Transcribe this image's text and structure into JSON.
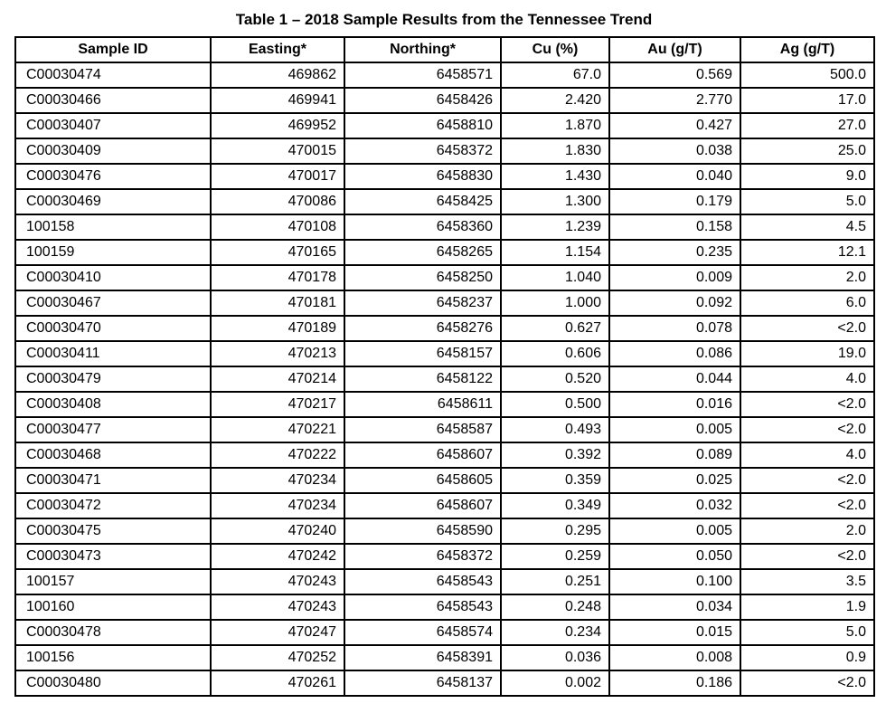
{
  "title": "Table 1 – 2018 Sample Results from the Tennessee Trend",
  "columns": [
    "Sample ID",
    "Easting*",
    "Northing*",
    "Cu (%)",
    "Au (g/T)",
    "Ag (g/T)"
  ],
  "rows": [
    [
      "C00030474",
      "469862",
      "6458571",
      "67.0",
      "0.569",
      "500.0"
    ],
    [
      "C00030466",
      "469941",
      "6458426",
      "2.420",
      "2.770",
      "17.0"
    ],
    [
      "C00030407",
      "469952",
      "6458810",
      "1.870",
      "0.427",
      "27.0"
    ],
    [
      "C00030409",
      "470015",
      "6458372",
      "1.830",
      "0.038",
      "25.0"
    ],
    [
      "C00030476",
      "470017",
      "6458830",
      "1.430",
      "0.040",
      "9.0"
    ],
    [
      "C00030469",
      "470086",
      "6458425",
      "1.300",
      "0.179",
      "5.0"
    ],
    [
      "100158",
      "470108",
      "6458360",
      "1.239",
      "0.158",
      "4.5"
    ],
    [
      "100159",
      "470165",
      "6458265",
      "1.154",
      "0.235",
      "12.1"
    ],
    [
      "C00030410",
      "470178",
      "6458250",
      "1.040",
      "0.009",
      "2.0"
    ],
    [
      "C00030467",
      "470181",
      "6458237",
      "1.000",
      "0.092",
      "6.0"
    ],
    [
      "C00030470",
      "470189",
      "6458276",
      "0.627",
      "0.078",
      "<2.0"
    ],
    [
      "C00030411",
      "470213",
      "6458157",
      "0.606",
      "0.086",
      "19.0"
    ],
    [
      "C00030479",
      "470214",
      "6458122",
      "0.520",
      "0.044",
      "4.0"
    ],
    [
      "C00030408",
      "470217",
      "6458611",
      "0.500",
      "0.016",
      "<2.0"
    ],
    [
      "C00030477",
      "470221",
      "6458587",
      "0.493",
      "0.005",
      "<2.0"
    ],
    [
      "C00030468",
      "470222",
      "6458607",
      "0.392",
      "0.089",
      "4.0"
    ],
    [
      "C00030471",
      "470234",
      "6458605",
      "0.359",
      "0.025",
      "<2.0"
    ],
    [
      "C00030472",
      "470234",
      "6458607",
      "0.349",
      "0.032",
      "<2.0"
    ],
    [
      "C00030475",
      "470240",
      "6458590",
      "0.295",
      "0.005",
      "2.0"
    ],
    [
      "C00030473",
      "470242",
      "6458372",
      "0.259",
      "0.050",
      "<2.0"
    ],
    [
      "100157",
      "470243",
      "6458543",
      "0.251",
      "0.100",
      "3.5"
    ],
    [
      "100160",
      "470243",
      "6458543",
      "0.248",
      "0.034",
      "1.9"
    ],
    [
      "C00030478",
      "470247",
      "6458574",
      "0.234",
      "0.015",
      "5.0"
    ],
    [
      "100156",
      "470252",
      "6458391",
      "0.036",
      "0.008",
      "0.9"
    ],
    [
      "C00030480",
      "470261",
      "6458137",
      "0.002",
      "0.186",
      "<2.0"
    ]
  ],
  "colors": {
    "border": "#000000",
    "text": "#000000",
    "background": "#ffffff"
  }
}
